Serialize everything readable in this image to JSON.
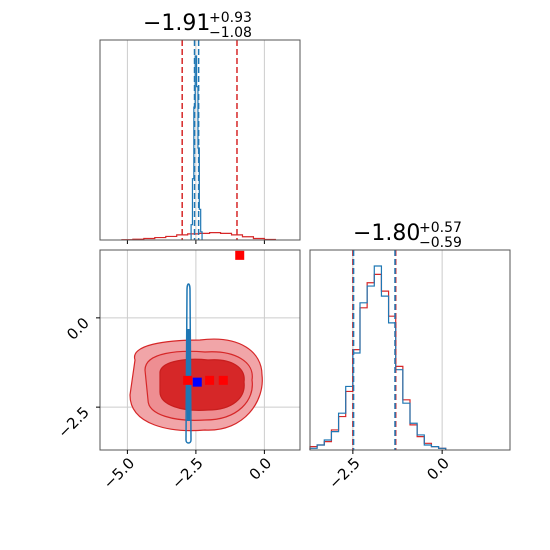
{
  "chart_data": [
    {
      "type": "histogram",
      "panel": "top-left",
      "title": {
        "value": "−1.91",
        "upper": "+0.93",
        "lower": "−1.08"
      },
      "xlim": [
        -6.0,
        1.3
      ],
      "grid": true,
      "vlines": [
        {
          "x": -3.0,
          "color": "#d62728",
          "style": "dashed"
        },
        {
          "x": -1.0,
          "color": "#d62728",
          "style": "dashed"
        },
        {
          "x": -2.55,
          "color": "#1f77b4",
          "style": "dashed"
        },
        {
          "x": -2.4,
          "color": "#1f77b4",
          "style": "dashed"
        }
      ],
      "series": [
        {
          "color": "#d62728",
          "x": [
            -5.0,
            -4.6,
            -4.2,
            -3.8,
            -3.4,
            -3.0,
            -2.6,
            -2.2,
            -1.8,
            -1.4,
            -1.0,
            -0.6,
            -0.2,
            0.2
          ],
          "y": [
            0.3,
            0.8,
            1.5,
            2.4,
            3.5,
            5.0,
            6.0,
            6.5,
            7.2,
            6.5,
            5.0,
            3.2,
            1.5,
            0.5
          ]
        },
        {
          "color": "#1f77b4",
          "x": [
            -2.65,
            -2.6,
            -2.55,
            -2.5,
            -2.45,
            -2.4,
            -2.35,
            -2.3
          ],
          "y": [
            15,
            60,
            130,
            180,
            150,
            90,
            30,
            8
          ]
        }
      ]
    },
    {
      "type": "scatter",
      "panel": "bottom-left",
      "xlim": [
        -6.0,
        1.3
      ],
      "ylim": [
        -3.7,
        1.9
      ],
      "xticks": [
        "−5.0",
        "−2.5",
        "0.0"
      ],
      "xtick_values": [
        -5.0,
        -2.5,
        0.0
      ],
      "yticks": [
        "0.0",
        "−2.5"
      ],
      "ytick_values": [
        0.0,
        -2.5
      ],
      "grid": true,
      "red_points": [
        {
          "x": -0.9,
          "y": 1.75
        },
        {
          "x": -2.8,
          "y": -1.75
        },
        {
          "x": -2.0,
          "y": -1.75
        },
        {
          "x": -1.5,
          "y": -1.75
        }
      ],
      "blue_point": {
        "x": -2.45,
        "y": -1.8
      },
      "red_color": "#d62728",
      "blue_color": "#1f77b4"
    },
    {
      "type": "histogram",
      "panel": "bottom-right",
      "title": {
        "value": "−1.80",
        "upper": "+0.57",
        "lower": "−0.59"
      },
      "xlim": [
        -3.7,
        1.9
      ],
      "xticks": [
        "−2.5",
        "0.0"
      ],
      "xtick_values": [
        -2.5,
        0.0
      ],
      "grid": true,
      "vlines": [
        {
          "x": -2.5,
          "color": "#d62728",
          "style": "dashed"
        },
        {
          "x": -1.3,
          "color": "#d62728",
          "style": "dashed"
        },
        {
          "x": -2.48,
          "color": "#1f77b4",
          "style": "dashed"
        },
        {
          "x": -1.32,
          "color": "#1f77b4",
          "style": "dashed"
        }
      ],
      "series": [
        {
          "color": "#d62728",
          "x": [
            -3.6,
            -3.4,
            -3.2,
            -3.0,
            -2.8,
            -2.6,
            -2.4,
            -2.2,
            -2.0,
            -1.8,
            -1.6,
            -1.4,
            -1.2,
            -1.0,
            -0.8,
            -0.6,
            -0.4,
            -0.2,
            0.0
          ],
          "y": [
            2,
            3,
            5,
            12,
            20,
            35,
            60,
            85,
            100,
            105,
            95,
            80,
            50,
            30,
            15,
            8,
            4,
            2,
            1
          ]
        },
        {
          "color": "#1f77b4",
          "x": [
            -3.6,
            -3.4,
            -3.2,
            -3.0,
            -2.8,
            -2.6,
            -2.4,
            -2.2,
            -2.0,
            -1.8,
            -1.6,
            -1.4,
            -1.2,
            -1.0,
            -0.8,
            -0.6,
            -0.4,
            -0.2,
            0.0
          ],
          "y": [
            1,
            3,
            6,
            11,
            22,
            38,
            58,
            88,
            98,
            110,
            92,
            76,
            48,
            28,
            16,
            9,
            3,
            2,
            1
          ]
        }
      ]
    }
  ]
}
